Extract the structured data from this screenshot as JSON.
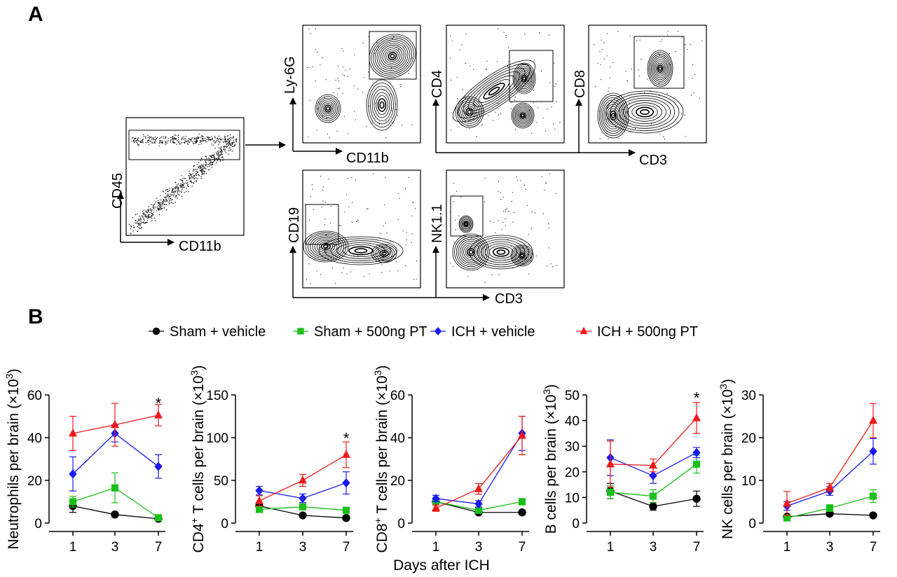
{
  "panels": {
    "a": "A",
    "b": "B"
  },
  "flow": {
    "parent": {
      "xlabel": "CD11b",
      "ylabel": "CD45"
    },
    "plots": [
      {
        "xlabel": "CD11b",
        "ylabel": "Ly-6G"
      },
      {
        "xlabel": "",
        "ylabel": "CD4"
      },
      {
        "xlabel": "",
        "ylabel": "CD8"
      },
      {
        "xlabel": "",
        "ylabel": "CD19"
      },
      {
        "xlabel": "",
        "ylabel": "NK1.1"
      }
    ],
    "shared_xlabel_top": "CD3",
    "shared_xlabel_bottom": "CD3"
  },
  "legend": [
    {
      "label": "Sham + vehicle",
      "color": "#000000",
      "marker": "circle"
    },
    {
      "label": "Sham + 500ng PT",
      "color": "#19c019",
      "marker": "square"
    },
    {
      "label": "ICH + vehicle",
      "color": "#1a1aef",
      "marker": "diamond"
    },
    {
      "label": "ICH + 500ng PT",
      "color": "#ef1a1a",
      "marker": "triangle"
    }
  ],
  "shared_xlabel": "Days after ICH",
  "chart_data": [
    {
      "type": "line",
      "ylabel_pre": "Neutrophils per brain (×10",
      "ylabel_sup": "3",
      "ylabel_post": ")",
      "x": [
        1,
        3,
        7
      ],
      "xticks": [
        "1",
        "3",
        "7"
      ],
      "ylim": [
        0,
        60
      ],
      "yticks": [
        0,
        20,
        40,
        60
      ],
      "series": [
        {
          "name": "Sham + vehicle",
          "values": [
            8,
            4,
            2
          ],
          "err": [
            3,
            1,
            1
          ]
        },
        {
          "name": "Sham + 500ng PT",
          "values": [
            10,
            16.5,
            2.5
          ],
          "err": [
            2.5,
            7,
            1
          ]
        },
        {
          "name": "ICH + vehicle",
          "values": [
            23,
            42,
            26.5
          ],
          "err": [
            8,
            4,
            5.5
          ]
        },
        {
          "name": "ICH + 500ng PT",
          "values": [
            42,
            46,
            50.5
          ],
          "err": [
            8,
            10,
            5
          ]
        }
      ],
      "annotations": [
        {
          "x": 7,
          "y": 55.5,
          "text": "*"
        }
      ]
    },
    {
      "type": "line",
      "ylabel_pre": "CD4",
      "ylabel_sup": "+",
      "ylabel_post": " T cells per brain (×10",
      "ylabel_sup2": "3",
      "ylabel_post2": ")",
      "x": [
        1,
        3,
        7
      ],
      "xticks": [
        "1",
        "3",
        "7"
      ],
      "ylim": [
        0,
        150
      ],
      "yticks": [
        0,
        50,
        100,
        150
      ],
      "series": [
        {
          "name": "Sham + vehicle",
          "values": [
            20,
            9,
            6
          ],
          "err": [
            3,
            2,
            2
          ]
        },
        {
          "name": "Sham + 500ng PT",
          "values": [
            16,
            19,
            15
          ],
          "err": [
            3,
            3,
            3
          ]
        },
        {
          "name": "ICH + vehicle",
          "values": [
            38,
            29,
            47
          ],
          "err": [
            5,
            5,
            13
          ]
        },
        {
          "name": "ICH + 500ng PT",
          "values": [
            26,
            50,
            80
          ],
          "err": [
            6,
            7,
            15
          ]
        }
      ],
      "annotations": [
        {
          "x": 7,
          "y": 98,
          "text": "*"
        }
      ]
    },
    {
      "type": "line",
      "ylabel_pre": "CD8",
      "ylabel_sup": "+",
      "ylabel_post": " T cells per brain (×10",
      "ylabel_sup2": "3",
      "ylabel_post2": ")",
      "x": [
        1,
        3,
        7
      ],
      "xticks": [
        "1",
        "3",
        "7"
      ],
      "ylim": [
        0,
        60
      ],
      "yticks": [
        0,
        20,
        40,
        60
      ],
      "series": [
        {
          "name": "Sham + vehicle",
          "values": [
            10,
            5,
            5
          ],
          "err": [
            1,
            1,
            1
          ]
        },
        {
          "name": "Sham + 500ng PT",
          "values": [
            10,
            6,
            10
          ],
          "err": [
            1.5,
            1.5,
            1.5
          ]
        },
        {
          "name": "ICH + vehicle",
          "values": [
            11.5,
            9,
            42
          ],
          "err": [
            1.5,
            1.5,
            8
          ]
        },
        {
          "name": "ICH + 500ng PT",
          "values": [
            7,
            16,
            41
          ],
          "err": [
            1.5,
            2.5,
            9
          ]
        }
      ],
      "annotations": []
    },
    {
      "type": "line",
      "ylabel_pre": "B cells per brain (×10",
      "ylabel_sup": "3",
      "ylabel_post": ")",
      "x": [
        1,
        3,
        7
      ],
      "xticks": [
        "1",
        "3",
        "7"
      ],
      "ylim": [
        0,
        50
      ],
      "yticks": [
        0,
        10,
        20,
        30,
        40,
        50
      ],
      "series": [
        {
          "name": "Sham + vehicle",
          "values": [
            12.5,
            6.5,
            9.5
          ],
          "err": [
            3,
            1.5,
            3
          ]
        },
        {
          "name": "Sham + 500ng PT",
          "values": [
            12,
            10.5,
            23
          ],
          "err": [
            2.5,
            2.5,
            3.5
          ]
        },
        {
          "name": "ICH + vehicle",
          "values": [
            25.5,
            18.5,
            27.5
          ],
          "err": [
            7,
            3,
            2
          ]
        },
        {
          "name": "ICH + 500ng PT",
          "values": [
            23,
            22.5,
            41
          ],
          "err": [
            9,
            2.5,
            6
          ]
        }
      ],
      "annotations": [
        {
          "x": 7,
          "y": 48.5,
          "text": "*"
        }
      ]
    },
    {
      "type": "line",
      "ylabel_pre": "NK cells per brain (×10",
      "ylabel_sup": "3",
      "ylabel_post": ")",
      "x": [
        1,
        3,
        7
      ],
      "xticks": [
        "1",
        "3",
        "7"
      ],
      "ylim": [
        0,
        30
      ],
      "yticks": [
        0,
        10,
        20,
        30
      ],
      "series": [
        {
          "name": "Sham + vehicle",
          "values": [
            1.5,
            2.2,
            1.8
          ],
          "err": [
            0.3,
            0.3,
            0.3
          ]
        },
        {
          "name": "Sham + 500ng PT",
          "values": [
            1.2,
            3.5,
            6.3
          ],
          "err": [
            0.4,
            0.8,
            1.5
          ]
        },
        {
          "name": "ICH + vehicle",
          "values": [
            4,
            7.5,
            16.8
          ],
          "err": [
            1,
            1,
            3
          ]
        },
        {
          "name": "ICH + 500ng PT",
          "values": [
            4.6,
            8.3,
            24
          ],
          "err": [
            2.8,
            1,
            4
          ]
        }
      ],
      "annotations": []
    }
  ]
}
